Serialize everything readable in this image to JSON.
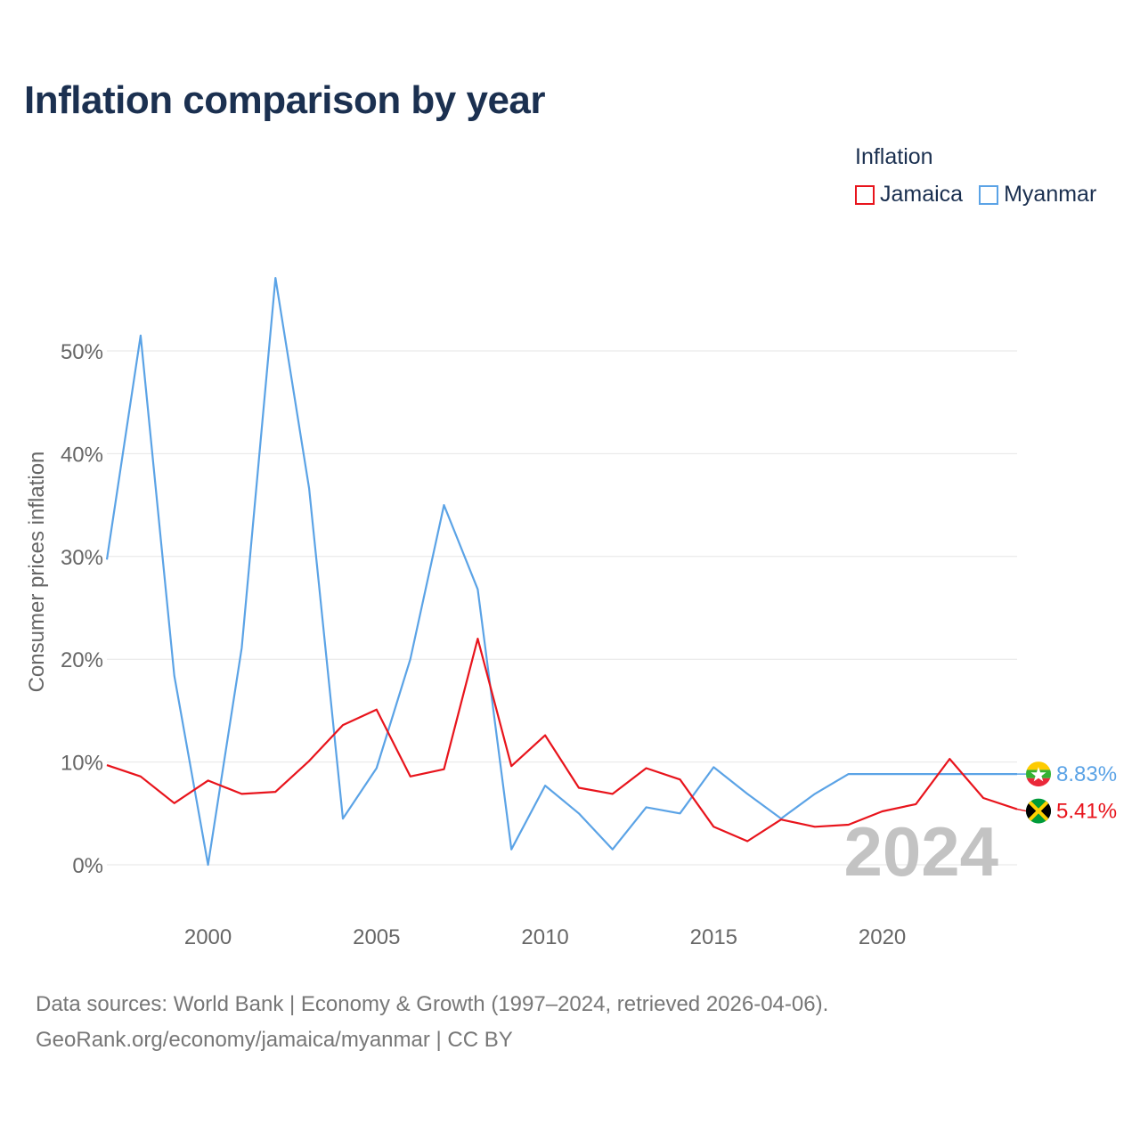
{
  "title": "Inflation comparison by year",
  "legend": {
    "title": "Inflation",
    "items": [
      {
        "name": "Jamaica",
        "color": "#e8141c"
      },
      {
        "name": "Myanmar",
        "color": "#5ba3e6"
      }
    ]
  },
  "year_watermark": "2024",
  "source": {
    "line1": "Data sources: World Bank | Economy & Growth (1997–2024, retrieved 2026-04-06).",
    "line2": "GeoRank.org/economy/jamaica/myanmar | CC BY"
  },
  "chart_data": {
    "type": "line",
    "title": "Inflation comparison by year",
    "xlabel": "",
    "ylabel": "Consumer prices inflation",
    "xlim": [
      1997,
      2024
    ],
    "ylim": [
      0,
      58
    ],
    "x_ticks": [
      2000,
      2005,
      2010,
      2015,
      2020
    ],
    "y_ticks": [
      0,
      10,
      20,
      30,
      40,
      50
    ],
    "y_tick_labels": [
      "0%",
      "10%",
      "20%",
      "30%",
      "40%",
      "50%"
    ],
    "grid": true,
    "legend_position": "top-right",
    "x": [
      1997,
      1998,
      1999,
      2000,
      2001,
      2002,
      2003,
      2004,
      2005,
      2006,
      2007,
      2008,
      2009,
      2010,
      2011,
      2012,
      2013,
      2014,
      2015,
      2016,
      2017,
      2018,
      2019,
      2020,
      2021,
      2022,
      2023,
      2024
    ],
    "series": [
      {
        "name": "Myanmar",
        "color": "#5ba3e6",
        "values": [
          29.7,
          51.5,
          18.4,
          0.0,
          21.1,
          57.1,
          36.6,
          4.5,
          9.4,
          20.0,
          35.0,
          26.8,
          1.5,
          7.7,
          5.0,
          1.5,
          5.6,
          5.0,
          9.5,
          6.9,
          4.5,
          6.9,
          8.83,
          8.83,
          8.83,
          8.83,
          8.83,
          8.83
        ],
        "end_label": "8.83%"
      },
      {
        "name": "Jamaica",
        "color": "#e8141c",
        "values": [
          9.7,
          8.6,
          6.0,
          8.2,
          6.9,
          7.1,
          10.1,
          13.6,
          15.1,
          8.6,
          9.3,
          22.0,
          9.6,
          12.6,
          7.5,
          6.9,
          9.4,
          8.3,
          3.7,
          2.3,
          4.4,
          3.7,
          3.9,
          5.2,
          5.9,
          10.3,
          6.5,
          5.41
        ],
        "end_label": "5.41%"
      }
    ]
  }
}
